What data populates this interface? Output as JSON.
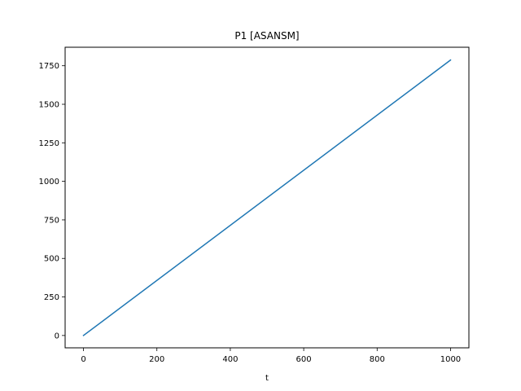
{
  "chart_data": {
    "type": "line",
    "title": "P1 [ASANSM]",
    "xlabel": "t",
    "ylabel": "",
    "xlim": [
      -50,
      1050
    ],
    "ylim": [
      -80,
      1870
    ],
    "xticks": [
      0,
      200,
      400,
      600,
      800,
      1000
    ],
    "yticks": [
      0,
      250,
      500,
      750,
      1000,
      1250,
      1500,
      1750
    ],
    "grid": false,
    "legend": "none",
    "series": [
      {
        "color": "#1f77b4",
        "x": [
          0,
          1000
        ],
        "y": [
          0,
          1787
        ]
      }
    ]
  }
}
